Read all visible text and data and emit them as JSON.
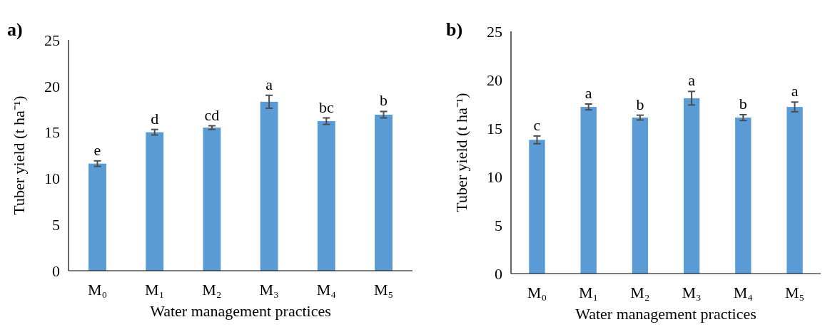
{
  "chart_data": [
    {
      "type": "bar",
      "title": "a)",
      "xlabel": "Water management practices",
      "ylabel": "Tuber yield (t ha⁻¹)",
      "categories": [
        "M₀",
        "M₁",
        "M₂",
        "M₃",
        "M₄",
        "M₅"
      ],
      "values": [
        11.6,
        15.0,
        15.5,
        18.3,
        16.2,
        16.9
      ],
      "errors": [
        0.3,
        0.3,
        0.2,
        0.7,
        0.35,
        0.35
      ],
      "color": "#5b9bd5",
      "ylim": [
        0,
        25
      ],
      "yticks": [
        0,
        5,
        10,
        15,
        20,
        25
      ],
      "annotations": [
        {
          "text": "e",
          "x": "M₀",
          "y": 11.9
        },
        {
          "text": "d",
          "x": "M₁",
          "y": 15.3
        },
        {
          "text": "cd",
          "x": "M₂",
          "y": 15.7
        },
        {
          "text": "a",
          "x": "M₃",
          "y": 19.0
        },
        {
          "text": "bc",
          "x": "M₄",
          "y": 16.55
        },
        {
          "text": "b",
          "x": "M₅",
          "y": 17.25
        }
      ]
    },
    {
      "type": "bar",
      "title": "b)",
      "xlabel": "Water management practices",
      "ylabel": "Tuber yield (t ha⁻¹)",
      "categories": [
        "M₀",
        "M₁",
        "M₂",
        "M₃",
        "M₄",
        "M₅"
      ],
      "values": [
        13.8,
        17.2,
        16.1,
        18.1,
        16.1,
        17.2
      ],
      "errors": [
        0.4,
        0.3,
        0.25,
        0.7,
        0.3,
        0.5
      ],
      "color": "#5b9bd5",
      "ylim": [
        0,
        25
      ],
      "yticks": [
        0,
        5,
        10,
        15,
        20,
        25
      ],
      "annotations": [
        {
          "text": "c",
          "x": "M₀",
          "y": 14.2
        },
        {
          "text": "a",
          "x": "M₁",
          "y": 17.5
        },
        {
          "text": "b",
          "x": "M₂",
          "y": 16.35
        },
        {
          "text": "a",
          "x": "M₃",
          "y": 18.8
        },
        {
          "text": "b",
          "x": "M₄",
          "y": 16.4
        },
        {
          "text": "a",
          "x": "M₅",
          "y": 17.7
        }
      ]
    }
  ]
}
